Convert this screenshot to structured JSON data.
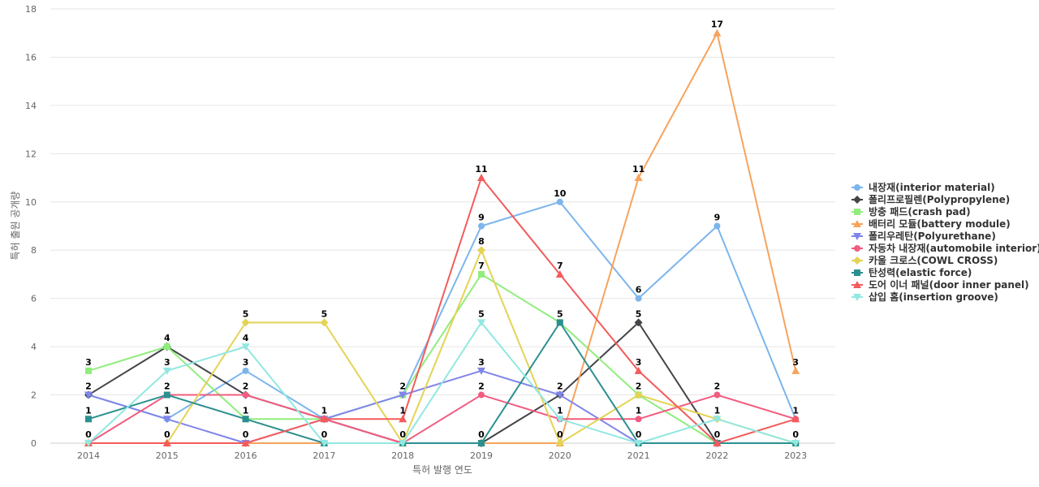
{
  "chart_data": {
    "type": "line",
    "xlabel": "특허 발행 연도",
    "ylabel": "특허 출원 공개량",
    "ylim": [
      0,
      18
    ],
    "ytick_step": 2,
    "grid": true,
    "legend_position": "right",
    "categories": [
      "2014",
      "2015",
      "2016",
      "2017",
      "2018",
      "2019",
      "2020",
      "2021",
      "2022",
      "2023"
    ],
    "series": [
      {
        "name": "내장재(interior material)",
        "color": "#7cb5ec",
        "marker": "circle",
        "values": [
          2,
          1,
          3,
          1,
          2,
          9,
          10,
          6,
          9,
          1
        ]
      },
      {
        "name": "폴리프로필렌(Polypropylene)",
        "color": "#434348",
        "marker": "diamond",
        "values": [
          2,
          4,
          2,
          1,
          0,
          0,
          2,
          5,
          0,
          0
        ]
      },
      {
        "name": "방충 패드(crash pad)",
        "color": "#90ed7d",
        "marker": "square",
        "values": [
          3,
          4,
          1,
          1,
          2,
          7,
          5,
          2,
          0,
          0
        ]
      },
      {
        "name": "배터리 모듈(battery module)",
        "color": "#f7a35c",
        "marker": "triangle",
        "values": [
          0,
          0,
          0,
          0,
          0,
          0,
          0,
          11,
          17,
          3
        ]
      },
      {
        "name": "폴리우레탄(Polyurethane)",
        "color": "#8085e9",
        "marker": "triangle-down",
        "values": [
          2,
          1,
          0,
          1,
          2,
          3,
          2,
          0,
          0,
          0
        ]
      },
      {
        "name": "자동차 내장재(automobile interior)",
        "color": "#f15c80",
        "marker": "circle",
        "values": [
          0,
          2,
          2,
          1,
          0,
          2,
          1,
          1,
          2,
          1
        ]
      },
      {
        "name": "카울 크로스(COWL CROSS)",
        "color": "#e4d354",
        "marker": "diamond",
        "values": [
          0,
          0,
          5,
          5,
          0,
          8,
          0,
          2,
          1,
          0
        ]
      },
      {
        "name": "탄성력(elastic force)",
        "color": "#2b908f",
        "marker": "square",
        "values": [
          1,
          2,
          1,
          0,
          0,
          0,
          5,
          0,
          0,
          0
        ]
      },
      {
        "name": "도어 이너 패널(door inner panel)",
        "color": "#f45b5b",
        "marker": "triangle",
        "values": [
          0,
          0,
          0,
          1,
          1,
          11,
          7,
          3,
          0,
          1
        ]
      },
      {
        "name": "삽입 홈(insertion groove)",
        "color": "#91e8e1",
        "marker": "triangle-down",
        "values": [
          0,
          3,
          4,
          0,
          0,
          5,
          1,
          0,
          1,
          0
        ]
      }
    ],
    "data_labels": [
      {
        "year": "2014",
        "series": "방충 패드(crash pad)",
        "text": "3"
      },
      {
        "year": "2014",
        "series": "내장재(interior material)",
        "text": "2"
      },
      {
        "year": "2014",
        "series": "탄성력(elastic force)",
        "text": "1"
      },
      {
        "year": "2014",
        "series": "배터리 모듈(battery module)",
        "text": "0"
      },
      {
        "year": "2015",
        "series": "폴리프로필렌(Polypropylene)",
        "text": "4"
      },
      {
        "year": "2015",
        "series": "삽입 홈(insertion groove)",
        "text": "3"
      },
      {
        "year": "2015",
        "series": "탄성력(elastic force)",
        "text": "2"
      },
      {
        "year": "2015",
        "series": "내장재(interior material)",
        "text": "1"
      },
      {
        "year": "2015",
        "series": "배터리 모듈(battery module)",
        "text": "0"
      },
      {
        "year": "2016",
        "series": "카울 크로스(COWL CROSS)",
        "text": "5"
      },
      {
        "year": "2016",
        "series": "삽입 홈(insertion groove)",
        "text": "4"
      },
      {
        "year": "2016",
        "series": "내장재(interior material)",
        "text": "3"
      },
      {
        "year": "2016",
        "series": "폴리프로필렌(Polypropylene)",
        "text": "2"
      },
      {
        "year": "2016",
        "series": "방충 패드(crash pad)",
        "text": "1"
      },
      {
        "year": "2016",
        "series": "배터리 모듈(battery module)",
        "text": "0"
      },
      {
        "year": "2017",
        "series": "카울 크로스(COWL CROSS)",
        "text": "5"
      },
      {
        "year": "2017",
        "series": "내장재(interior material)",
        "text": "1"
      },
      {
        "year": "2017",
        "series": "배터리 모듈(battery module)",
        "text": "0"
      },
      {
        "year": "2018",
        "series": "내장재(interior material)",
        "text": "2"
      },
      {
        "year": "2018",
        "series": "도어 이너 패널(door inner panel)",
        "text": "1"
      },
      {
        "year": "2018",
        "series": "배터리 모듈(battery module)",
        "text": "0"
      },
      {
        "year": "2019",
        "series": "도어 이너 패널(door inner panel)",
        "text": "11"
      },
      {
        "year": "2019",
        "series": "내장재(interior material)",
        "text": "9"
      },
      {
        "year": "2019",
        "series": "카울 크로스(COWL CROSS)",
        "text": "8"
      },
      {
        "year": "2019",
        "series": "방충 패드(crash pad)",
        "text": "7"
      },
      {
        "year": "2019",
        "series": "삽입 홈(insertion groove)",
        "text": "5"
      },
      {
        "year": "2019",
        "series": "폴리우레탄(Polyurethane)",
        "text": "3"
      },
      {
        "year": "2019",
        "series": "자동차 내장재(automobile interior)",
        "text": "2"
      },
      {
        "year": "2019",
        "series": "폴리프로필렌(Polypropylene)",
        "text": "0"
      },
      {
        "year": "2020",
        "series": "내장재(interior material)",
        "text": "10"
      },
      {
        "year": "2020",
        "series": "도어 이너 패널(door inner panel)",
        "text": "7"
      },
      {
        "year": "2020",
        "series": "탄성력(elastic force)",
        "text": "5"
      },
      {
        "year": "2020",
        "series": "폴리프로필렌(Polypropylene)",
        "text": "2"
      },
      {
        "year": "2020",
        "series": "삽입 홈(insertion groove)",
        "text": "1"
      },
      {
        "year": "2020",
        "series": "배터리 모듈(battery module)",
        "text": "0"
      },
      {
        "year": "2021",
        "series": "배터리 모듈(battery module)",
        "text": "11"
      },
      {
        "year": "2021",
        "series": "내장재(interior material)",
        "text": "6"
      },
      {
        "year": "2021",
        "series": "폴리프로필렌(Polypropylene)",
        "text": "5"
      },
      {
        "year": "2021",
        "series": "도어 이너 패널(door inner panel)",
        "text": "3"
      },
      {
        "year": "2021",
        "series": "방충 패드(crash pad)",
        "text": "2"
      },
      {
        "year": "2021",
        "series": "자동차 내장재(automobile interior)",
        "text": "1"
      },
      {
        "year": "2021",
        "series": "삽입 홈(insertion groove)",
        "text": "0"
      },
      {
        "year": "2022",
        "series": "배터리 모듈(battery module)",
        "text": "17"
      },
      {
        "year": "2022",
        "series": "내장재(interior material)",
        "text": "9"
      },
      {
        "year": "2022",
        "series": "자동차 내장재(automobile interior)",
        "text": "2"
      },
      {
        "year": "2022",
        "series": "삽입 홈(insertion groove)",
        "text": "1"
      },
      {
        "year": "2022",
        "series": "폴리프로필렌(Polypropylene)",
        "text": "0"
      },
      {
        "year": "2023",
        "series": "배터리 모듈(battery module)",
        "text": "3"
      },
      {
        "year": "2023",
        "series": "내장재(interior material)",
        "text": "1"
      },
      {
        "year": "2023",
        "series": "삽입 홈(insertion groove)",
        "text": "0"
      }
    ]
  }
}
